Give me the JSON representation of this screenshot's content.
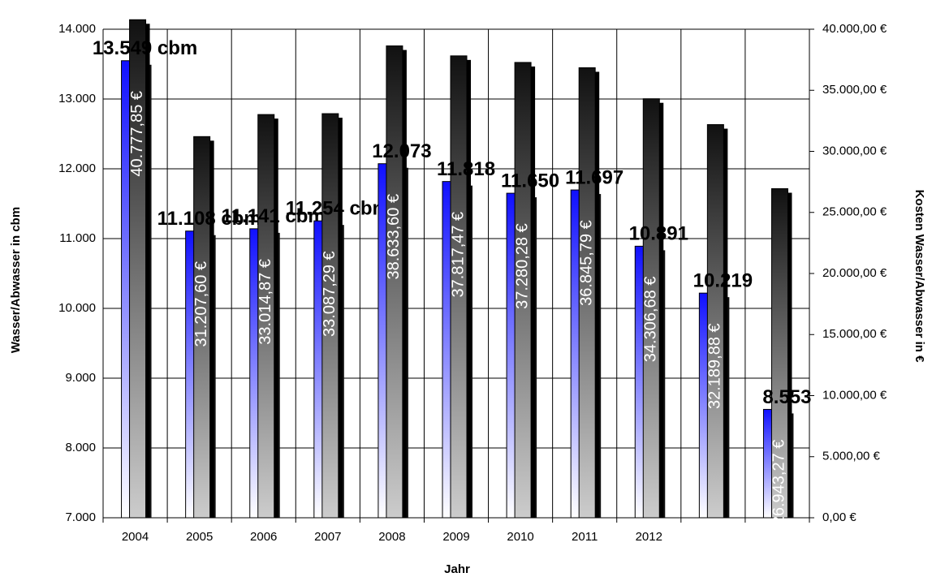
{
  "chart_data": {
    "type": "bar",
    "x_label": "Jahr",
    "y_label": "Wasser/Abwasser  in cbm",
    "y2_label": "Kosten Wasser/Abwasser  in €",
    "categories": [
      "2004",
      "2005",
      "2006",
      "2007",
      "2008",
      "2009",
      "2010",
      "2011",
      "2012",
      null,
      null
    ],
    "series": [
      {
        "name": "Wasser/Abwasser",
        "color": "#1a1aff",
        "values": [
          13549,
          11108,
          11141,
          11254,
          12073,
          11818,
          11650,
          11697,
          10891,
          10219,
          8553
        ],
        "value_labels": [
          "13.549 cbm",
          "11.108 cbm",
          "11.141 cbm",
          "11.254 cbm",
          "12.073",
          "11.818",
          "11.650",
          "11.697",
          "10.891",
          "10.219",
          "8.553"
        ]
      },
      {
        "name": "Kosten",
        "color": "#222222",
        "axis": "y2",
        "values": [
          40777.85,
          31207.6,
          33014.87,
          33087.29,
          38633.6,
          37817.47,
          37280.28,
          36845.79,
          34306.68,
          32189.88,
          26943.27
        ],
        "value_labels": [
          "40.777,85 €",
          "31.207,60 €",
          "33.014,87 €",
          "33.087,29 €",
          "38.633,60 €",
          "37.817,47 €",
          "37.280,28 €",
          "36.845,79 €",
          "34.306,68 €",
          "32.189,88 €",
          "26.943,27 €"
        ]
      }
    ],
    "ylim": [
      7000,
      14000
    ],
    "yticks": [
      {
        "value": 7000,
        "label": "7.000"
      },
      {
        "value": 8000,
        "label": "8.000"
      },
      {
        "value": 9000,
        "label": "9.000"
      },
      {
        "value": 10000,
        "label": "10.000"
      },
      {
        "value": 11000,
        "label": "11.000"
      },
      {
        "value": 12000,
        "label": "12.000"
      },
      {
        "value": 13000,
        "label": "13.000"
      },
      {
        "value": 14000,
        "label": "14.000"
      }
    ],
    "y2lim": [
      0,
      40000
    ],
    "y2ticks": [
      {
        "value": 0,
        "label": "0,00 €"
      },
      {
        "value": 5000,
        "label": "5.000,00 €"
      },
      {
        "value": 10000,
        "label": "10.000,00 €"
      },
      {
        "value": 15000,
        "label": "15.000,00 €"
      },
      {
        "value": 20000,
        "label": "20.000,00 €"
      },
      {
        "value": 25000,
        "label": "25.000,00 €"
      },
      {
        "value": 30000,
        "label": "30.000,00 €"
      },
      {
        "value": 35000,
        "label": "35.000,00 €"
      },
      {
        "value": 40000,
        "label": "40.000,00 €"
      }
    ],
    "grid": true
  }
}
